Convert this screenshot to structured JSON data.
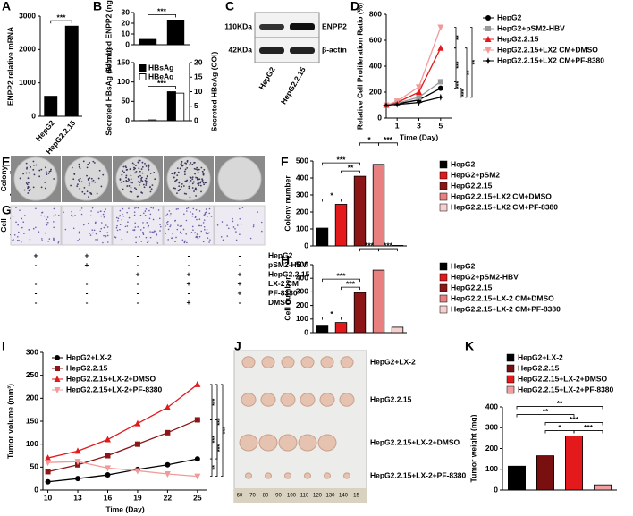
{
  "panel_labels": [
    "A",
    "B",
    "C",
    "D",
    "E",
    "F",
    "G",
    "H",
    "I",
    "J",
    "K"
  ],
  "blot": {
    "markers": [
      "110KDa",
      "42KDa"
    ],
    "proteins": [
      "ENPP2",
      "β-actin"
    ],
    "lanes": [
      "HepG2",
      "HepG2.2.15"
    ]
  },
  "images": {
    "colony_label": [
      "Colony",
      "formation"
    ],
    "migration_label": [
      "Cell",
      "migration"
    ]
  },
  "treatment_table": {
    "rows": [
      {
        "label": "HepG2",
        "marks": [
          "+",
          "+",
          "-",
          "-",
          "-"
        ]
      },
      {
        "label": "pSM2-HBV",
        "marks": [
          "-",
          "+",
          "-",
          "-",
          "-"
        ]
      },
      {
        "label": "HepG2.2.15",
        "marks": [
          "-",
          "-",
          "+",
          "+",
          "+"
        ]
      },
      {
        "label": "LX-2 CM",
        "marks": [
          "-",
          "-",
          "-",
          "+",
          "+"
        ]
      },
      {
        "label": "PF-8380",
        "marks": [
          "-",
          "-",
          "-",
          "-",
          "+"
        ]
      },
      {
        "label": "DMSO",
        "marks": [
          "-",
          "-",
          "-",
          "+",
          "-"
        ]
      }
    ]
  },
  "photo": {
    "groups": [
      "HepG2+LX-2",
      "HepG2.2.15",
      "HepG2.2.15+LX-2+DMSO",
      "HepG2.2.15+LX-2+PF-8380"
    ],
    "ruler": [
      "60",
      "70",
      "80",
      "90",
      "100",
      "110",
      "120",
      "130",
      "140",
      "15"
    ]
  },
  "chart_data": [
    {
      "type": "bar",
      "ylabel": "ENPP2 relative mRNA",
      "categories": [
        "HepG2",
        "HepG2.2.15"
      ],
      "values": [
        600,
        2700
      ],
      "color": "#000000",
      "ylim": [
        0,
        3000
      ],
      "yticks": [
        0,
        1000,
        2000,
        3000
      ],
      "annotations": [
        "***"
      ]
    },
    {
      "type": "bar",
      "ylabel": "Secreted ENPP2 (ng/mL)",
      "values": [
        5,
        23
      ],
      "color": "#000000",
      "ylim": [
        0,
        30
      ],
      "yticks": [
        0,
        10,
        20,
        30
      ],
      "annotations": [
        "***"
      ]
    },
    {
      "type": "bar",
      "ylabel": "Secreted HBsAg (IU/mL)",
      "y2label": "Secreted HBeAg (COI)",
      "categories": [
        "HepG2",
        "HepG2.2.15"
      ],
      "series": [
        {
          "name": "HBsAg",
          "color": "#000000",
          "values": [
            0.5,
            75
          ]
        },
        {
          "name": "HBeAg",
          "color": "#ffffff",
          "axis": "y2",
          "values": [
            0.3,
            9.5
          ]
        }
      ],
      "ylim": [
        0,
        150
      ],
      "yticks": [
        0,
        50,
        100,
        150
      ],
      "y2lim": [
        0,
        20
      ],
      "y2ticks": [
        0,
        5,
        10,
        15,
        20
      ],
      "legend": "upper left",
      "annotations": [
        "***"
      ]
    },
    {
      "type": "line",
      "xlabel": "Time (Day)",
      "ylabel": "Relative Cell Proliferation Ratio (%)",
      "x": [
        0,
        1,
        3,
        5
      ],
      "xlim": [
        0,
        6
      ],
      "xticks": [
        1,
        3,
        5
      ],
      "ylim": [
        0,
        800
      ],
      "yticks": [
        0,
        200,
        400,
        600,
        800
      ],
      "legend": "right",
      "series": [
        {
          "name": "HepG2",
          "color": "#000000",
          "marker": "circle",
          "values": [
            100,
            110,
            140,
            230
          ]
        },
        {
          "name": "HepG2+pSM2-HBV",
          "color": "#999999",
          "marker": "square",
          "values": [
            100,
            115,
            160,
            280
          ]
        },
        {
          "name": "HepG2.2.15",
          "color": "#e3191c",
          "marker": "triangle",
          "values": [
            100,
            120,
            200,
            540
          ]
        },
        {
          "name": "HepG2.2.15+LX2 CM+DMSO",
          "color": "#f29a9a",
          "marker": "triangle-down",
          "values": [
            100,
            130,
            240,
            700
          ]
        },
        {
          "name": "HepG2.2.15+LX2 CM+PF-8380",
          "color": "#000000",
          "marker": "star",
          "values": [
            100,
            105,
            120,
            160
          ]
        }
      ],
      "annotations": [
        "**",
        "***",
        "***",
        "***",
        "**",
        "**"
      ]
    },
    {
      "type": "bar",
      "ylabel": "Colony number",
      "categories": [
        "HepG2",
        "HepG2+pSM2",
        "HepG2.2.15",
        "HepG2.2.15+LX2 CM+DMSO",
        "HepG2.2.15+LX2 CM+PF-8380"
      ],
      "values": [
        105,
        245,
        410,
        480,
        3
      ],
      "colors": [
        "#000000",
        "#e3191c",
        "#8c1515",
        "#e88080",
        "#f6cfcf"
      ],
      "ylim": [
        0,
        500
      ],
      "yticks": [
        0,
        100,
        200,
        300,
        400,
        500
      ],
      "legend": "right",
      "annotations": [
        "*",
        "***",
        "**",
        "*",
        "***"
      ]
    },
    {
      "type": "bar",
      "ylabel": "Cell number",
      "categories": [
        "HepG2",
        "HepG2+pSM2-HBV",
        "HepG2.2.15",
        "HepG2.2.15+LX-2 CM+DMSO",
        "HepG2.2.15+LX-2 CM+PF-8380"
      ],
      "values": [
        55,
        75,
        295,
        460,
        40
      ],
      "colors": [
        "#000000",
        "#e3191c",
        "#8c1515",
        "#e88080",
        "#f6cfcf"
      ],
      "ylim": [
        0,
        500
      ],
      "yticks": [
        0,
        100,
        200,
        300,
        400,
        500
      ],
      "legend": "right",
      "annotations": [
        "*",
        "***",
        "***",
        "***",
        "***"
      ]
    },
    {
      "type": "line",
      "xlabel": "Time (Day)",
      "ylabel": "Tumor volume (mm³)",
      "x": [
        10,
        13,
        16,
        19,
        22,
        25
      ],
      "xlim": [
        9.5,
        26
      ],
      "xticks": [
        10,
        13,
        16,
        19,
        22,
        25
      ],
      "ylim": [
        0,
        300
      ],
      "yticks": [
        0,
        50,
        100,
        150,
        200,
        250,
        300
      ],
      "legend": "upper left",
      "series": [
        {
          "name": "HepG2+LX-2",
          "color": "#000000",
          "marker": "circle",
          "values": [
            18,
            25,
            33,
            45,
            55,
            68
          ]
        },
        {
          "name": "HepG2.2.15",
          "color": "#8c1515",
          "marker": "square",
          "values": [
            40,
            55,
            75,
            100,
            125,
            153
          ]
        },
        {
          "name": "HepG2.2.15+LX-2+DMSO",
          "color": "#e3191c",
          "marker": "triangle",
          "values": [
            70,
            85,
            110,
            145,
            180,
            230
          ]
        },
        {
          "name": "HepG2.2.15+LX-2+PF-8380",
          "color": "#f29a9a",
          "marker": "triangle-down",
          "values": [
            60,
            62,
            48,
            42,
            35,
            30
          ]
        }
      ],
      "annotations": [
        "***",
        "***",
        "***",
        "**",
        "***",
        "***"
      ]
    },
    {
      "type": "bar",
      "ylabel": "Tumor weight (mg)",
      "categories": [
        "HepG2+LX-2",
        "HepG2.2.15",
        "HepG2.2.15+LX-2+DMSO",
        "HepG2.2.15+LX-2+PF-8380"
      ],
      "values": [
        115,
        165,
        260,
        25
      ],
      "colors": [
        "#000000",
        "#7a0f0f",
        "#e3191c",
        "#f0a0a0"
      ],
      "ylim": [
        0,
        400
      ],
      "yticks": [
        0,
        100,
        200,
        300,
        400
      ],
      "legend": "upper",
      "annotations": [
        "**",
        "**",
        "***",
        "*",
        "***"
      ]
    }
  ]
}
